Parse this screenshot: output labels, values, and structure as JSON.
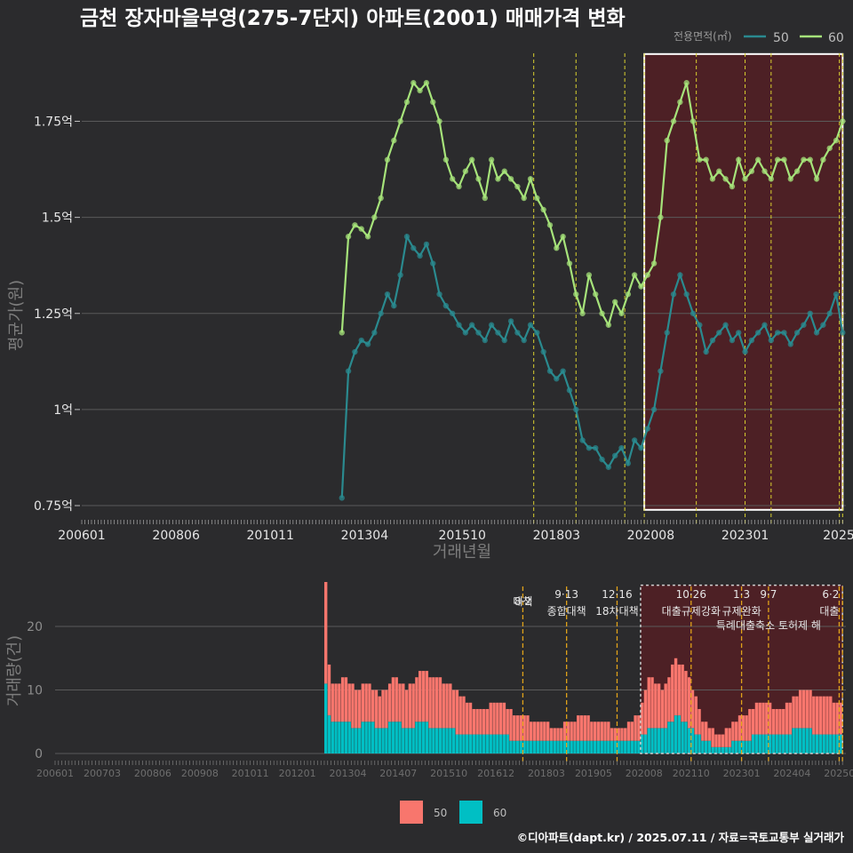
{
  "title": "금천 장자마을부영(275-7단지) 아파트(2001) 매매가격 변화",
  "credit": "©디아파트(dapt.kr) / 2025.07.11 / 자료=국토교통부 실거래가",
  "colors": {
    "line50": "#2a8a8f",
    "line60": "#a6e37a",
    "bar50": "#f8766d",
    "bar60": "#00bfc4",
    "policy_top": "#d9d02f",
    "policy_bottom": "#e0a21a",
    "highlight": "#5c1c22"
  },
  "chart_data": [
    {
      "type": "line",
      "title": "금천 장자마을부영(275-7단지) 아파트(2001) 매매가격 변화",
      "xlabel": "거래년월",
      "ylabel": "평균가(원)",
      "x_tick_labels": [
        "200601",
        "200806",
        "201011",
        "201304",
        "201510",
        "201803",
        "202008",
        "202301",
        "2025"
      ],
      "y_tick_labels": [
        "0.75억",
        "1억",
        "1.25억",
        "1.5억",
        "1.75억"
      ],
      "y_ticks": [
        0.75,
        1.0,
        1.25,
        1.5,
        1.75
      ],
      "ylim": [
        0.72,
        1.95
      ],
      "xlim": [
        "2006-01",
        "2025-08"
      ],
      "grid": true,
      "legend_title": "전용면적(㎡)",
      "legend_position": "top-right",
      "highlight_region": {
        "from": "2020-06",
        "to": "2025-07"
      },
      "policy_lines": [
        "2017-08",
        "2018-09",
        "2019-12",
        "2020-06",
        "2021-10",
        "2023-01",
        "2023-09",
        "2025-06",
        "2025-07"
      ],
      "series": [
        {
          "name": "50",
          "x": [
            "2012-09",
            "2012-11",
            "2013-01",
            "2013-03",
            "2013-05",
            "2013-07",
            "2013-09",
            "2013-11",
            "2014-01",
            "2014-03",
            "2014-05",
            "2014-07",
            "2014-09",
            "2014-11",
            "2015-01",
            "2015-03",
            "2015-05",
            "2015-07",
            "2015-09",
            "2015-11",
            "2016-01",
            "2016-03",
            "2016-05",
            "2016-07",
            "2016-09",
            "2016-11",
            "2017-01",
            "2017-03",
            "2017-05",
            "2017-07",
            "2017-09",
            "2017-11",
            "2018-01",
            "2018-03",
            "2018-05",
            "2018-07",
            "2018-09",
            "2018-11",
            "2019-01",
            "2019-03",
            "2019-05",
            "2019-07",
            "2019-09",
            "2019-11",
            "2020-01",
            "2020-03",
            "2020-05",
            "2020-07",
            "2020-09",
            "2020-11",
            "2021-01",
            "2021-03",
            "2021-05",
            "2021-07",
            "2021-09",
            "2021-11",
            "2022-01",
            "2022-03",
            "2022-05",
            "2022-07",
            "2022-09",
            "2022-11",
            "2023-01",
            "2023-03",
            "2023-05",
            "2023-07",
            "2023-09",
            "2023-11",
            "2024-01",
            "2024-03",
            "2024-05",
            "2024-07",
            "2024-09",
            "2024-11",
            "2025-01",
            "2025-03",
            "2025-05",
            "2025-07"
          ],
          "values": [
            0.77,
            1.1,
            1.15,
            1.18,
            1.17,
            1.2,
            1.25,
            1.3,
            1.27,
            1.35,
            1.45,
            1.42,
            1.4,
            1.43,
            1.38,
            1.3,
            1.27,
            1.25,
            1.22,
            1.2,
            1.22,
            1.2,
            1.18,
            1.22,
            1.2,
            1.18,
            1.23,
            1.2,
            1.18,
            1.22,
            1.2,
            1.15,
            1.1,
            1.08,
            1.1,
            1.05,
            1.0,
            0.92,
            0.9,
            0.9,
            0.87,
            0.85,
            0.88,
            0.9,
            0.86,
            0.92,
            0.9,
            0.95,
            1.0,
            1.1,
            1.2,
            1.3,
            1.35,
            1.3,
            1.25,
            1.22,
            1.15,
            1.18,
            1.2,
            1.22,
            1.18,
            1.2,
            1.15,
            1.18,
            1.2,
            1.22,
            1.18,
            1.2,
            1.2,
            1.17,
            1.2,
            1.22,
            1.25,
            1.2,
            1.22,
            1.25,
            1.3,
            1.2
          ]
        },
        {
          "name": "60",
          "x": [
            "2012-09",
            "2012-11",
            "2013-01",
            "2013-03",
            "2013-05",
            "2013-07",
            "2013-09",
            "2013-11",
            "2014-01",
            "2014-03",
            "2014-05",
            "2014-07",
            "2014-09",
            "2014-11",
            "2015-01",
            "2015-03",
            "2015-05",
            "2015-07",
            "2015-09",
            "2015-11",
            "2016-01",
            "2016-03",
            "2016-05",
            "2016-07",
            "2016-09",
            "2016-11",
            "2017-01",
            "2017-03",
            "2017-05",
            "2017-07",
            "2017-09",
            "2017-11",
            "2018-01",
            "2018-03",
            "2018-05",
            "2018-07",
            "2018-09",
            "2018-11",
            "2019-01",
            "2019-03",
            "2019-05",
            "2019-07",
            "2019-09",
            "2019-11",
            "2020-01",
            "2020-03",
            "2020-05",
            "2020-07",
            "2020-09",
            "2020-11",
            "2021-01",
            "2021-03",
            "2021-05",
            "2021-07",
            "2021-09",
            "2021-11",
            "2022-01",
            "2022-03",
            "2022-05",
            "2022-07",
            "2022-09",
            "2022-11",
            "2023-01",
            "2023-03",
            "2023-05",
            "2023-07",
            "2023-09",
            "2023-11",
            "2024-01",
            "2024-03",
            "2024-05",
            "2024-07",
            "2024-09",
            "2024-11",
            "2025-01",
            "2025-03",
            "2025-05",
            "2025-07"
          ],
          "values": [
            1.2,
            1.45,
            1.48,
            1.47,
            1.45,
            1.5,
            1.55,
            1.65,
            1.7,
            1.75,
            1.8,
            1.85,
            1.83,
            1.85,
            1.8,
            1.75,
            1.65,
            1.6,
            1.58,
            1.62,
            1.65,
            1.6,
            1.55,
            1.65,
            1.6,
            1.62,
            1.6,
            1.58,
            1.55,
            1.6,
            1.55,
            1.52,
            1.48,
            1.42,
            1.45,
            1.38,
            1.3,
            1.25,
            1.35,
            1.3,
            1.25,
            1.22,
            1.28,
            1.25,
            1.3,
            1.35,
            1.32,
            1.35,
            1.38,
            1.5,
            1.7,
            1.75,
            1.8,
            1.85,
            1.75,
            1.65,
            1.65,
            1.6,
            1.62,
            1.6,
            1.58,
            1.65,
            1.6,
            1.62,
            1.65,
            1.62,
            1.6,
            1.65,
            1.65,
            1.6,
            1.62,
            1.65,
            1.65,
            1.6,
            1.65,
            1.68,
            1.7,
            1.75
          ]
        }
      ]
    },
    {
      "type": "bar",
      "xlabel": "",
      "ylabel": "거래량(건)",
      "x_tick_labels": [
        "200601",
        "200703",
        "200806",
        "200908",
        "201011",
        "201201",
        "201304",
        "201407",
        "201510",
        "201612",
        "201803",
        "201905",
        "202008",
        "202110",
        "202301",
        "202404",
        "202507"
      ],
      "y_ticks": [
        0,
        10,
        20
      ],
      "ylim": [
        0,
        27
      ],
      "xlim": [
        "2006-01",
        "2025-08"
      ],
      "grid": true,
      "stacked": true,
      "legend_position": "bottom",
      "highlight_region": {
        "from": "2020-07",
        "to": "2025-07"
      },
      "policy_lines": [
        "2017-08",
        "2018-09",
        "2019-12",
        "2021-10",
        "2023-01",
        "2023-09",
        "2025-06",
        "2025-07"
      ],
      "annotations": [
        {
          "x": "2017-08",
          "date": "8·2",
          "text": "대책"
        },
        {
          "x": "2018-09",
          "date": "9·13",
          "text": "종합대책"
        },
        {
          "x": "2019-12",
          "date": "12·16",
          "text": "18차대책"
        },
        {
          "x": "2021-10",
          "date": "10·26",
          "text": "대출규제강화"
        },
        {
          "x": "2023-01",
          "date": "1·3",
          "text": "규제완화"
        },
        {
          "x": "2023-09",
          "date": "9·7",
          "text": "특례대출축소 토허제 해"
        },
        {
          "x": "2025-06",
          "date": "6·2",
          "text": "대출"
        }
      ],
      "series": [
        {
          "name": "50",
          "values_sampled": [
            [
              "2012-09",
              27
            ],
            [
              "2012-10",
              14
            ],
            [
              "2012-11",
              11
            ],
            [
              "2013-03",
              12
            ],
            [
              "2013-06",
              10
            ],
            [
              "2013-09",
              11
            ],
            [
              "2014-01",
              9
            ],
            [
              "2014-05",
              12
            ],
            [
              "2014-09",
              10
            ],
            [
              "2015-01",
              13
            ],
            [
              "2015-05",
              12
            ],
            [
              "2015-09",
              11
            ],
            [
              "2016-01",
              9
            ],
            [
              "2016-06",
              7
            ],
            [
              "2017-01",
              8
            ],
            [
              "2017-06",
              6
            ],
            [
              "2018-01",
              5
            ],
            [
              "2018-06",
              4
            ],
            [
              "2019-01",
              6
            ],
            [
              "2019-06",
              5
            ],
            [
              "2020-01",
              4
            ],
            [
              "2020-06",
              6
            ],
            [
              "2020-09",
              12
            ],
            [
              "2021-01",
              10
            ],
            [
              "2021-05",
              15
            ],
            [
              "2021-09",
              12
            ],
            [
              "2022-01",
              5
            ],
            [
              "2022-06",
              3
            ],
            [
              "2023-01",
              6
            ],
            [
              "2023-06",
              8
            ],
            [
              "2024-01",
              7
            ],
            [
              "2024-06",
              10
            ],
            [
              "2025-01",
              9
            ],
            [
              "2025-06",
              8
            ]
          ]
        },
        {
          "name": "60",
          "values_sampled": [
            [
              "2012-09",
              11
            ],
            [
              "2012-10",
              6
            ],
            [
              "2012-11",
              5
            ],
            [
              "2013-03",
              5
            ],
            [
              "2013-06",
              4
            ],
            [
              "2013-09",
              5
            ],
            [
              "2014-01",
              4
            ],
            [
              "2014-05",
              5
            ],
            [
              "2014-09",
              4
            ],
            [
              "2015-01",
              5
            ],
            [
              "2015-05",
              4
            ],
            [
              "2015-09",
              4
            ],
            [
              "2016-01",
              3
            ],
            [
              "2016-06",
              3
            ],
            [
              "2017-01",
              3
            ],
            [
              "2017-06",
              2
            ],
            [
              "2018-01",
              2
            ],
            [
              "2018-06",
              2
            ],
            [
              "2019-01",
              2
            ],
            [
              "2019-06",
              2
            ],
            [
              "2020-01",
              2
            ],
            [
              "2020-06",
              2
            ],
            [
              "2020-09",
              4
            ],
            [
              "2021-01",
              4
            ],
            [
              "2021-05",
              6
            ],
            [
              "2021-09",
              4
            ],
            [
              "2022-01",
              2
            ],
            [
              "2022-06",
              1
            ],
            [
              "2023-01",
              2
            ],
            [
              "2023-06",
              3
            ],
            [
              "2024-01",
              3
            ],
            [
              "2024-06",
              4
            ],
            [
              "2025-01",
              3
            ],
            [
              "2025-06",
              3
            ]
          ]
        }
      ]
    }
  ]
}
